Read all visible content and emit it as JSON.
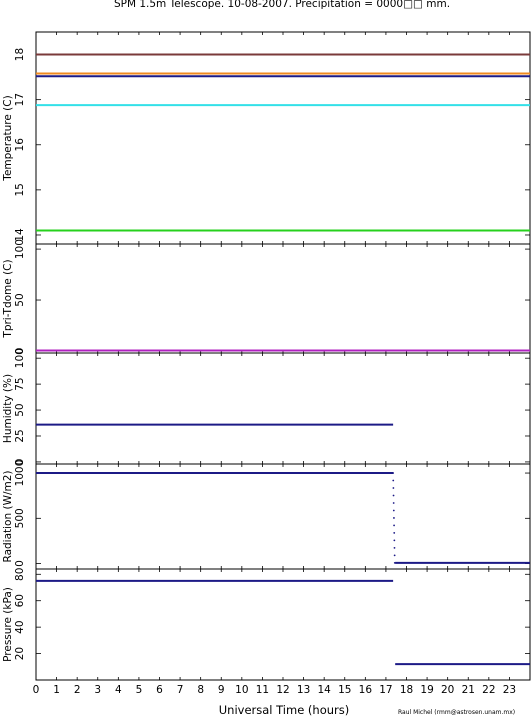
{
  "title": "SPM 1.5m Telescope. 10-08-2007. Precipitation = 0000□□ mm.",
  "credit": "Raul Michel (rmm@astrosen.unam.mx)",
  "colors": {
    "navy": "#1c1a86",
    "brown": "#7a3a3a",
    "orange": "#f08a1f",
    "cyan": "#33e0e8",
    "green": "#26d11c",
    "magenta": "#b020c0"
  },
  "chart_data": [
    {
      "type": "line",
      "title": "SPM 1.5m Telescope. 10-08-2007. Precipitation = 0000□□ mm.",
      "ylabel": "Temperature (C)",
      "xlim": [
        0,
        24
      ],
      "ylim": [
        13.8,
        18.5
      ],
      "yticks": [
        14,
        15,
        16,
        17,
        18
      ],
      "series": [
        {
          "color": "brown",
          "x": [
            0,
            24
          ],
          "y": [
            18.0,
            18.0
          ]
        },
        {
          "color": "orange",
          "x": [
            0,
            24
          ],
          "y": [
            17.58,
            17.58
          ]
        },
        {
          "color": "navy",
          "x": [
            0,
            24
          ],
          "y": [
            17.52,
            17.52
          ]
        },
        {
          "color": "cyan",
          "x": [
            0,
            24
          ],
          "y": [
            16.88,
            16.88
          ]
        },
        {
          "color": "green",
          "x": [
            0,
            24
          ],
          "y": [
            14.1,
            14.1
          ]
        }
      ]
    },
    {
      "type": "line",
      "ylabel": "Tpri-Tdome (C)",
      "xlim": [
        0,
        24
      ],
      "ylim": [
        -2,
        105
      ],
      "yticks": [
        0,
        50,
        100
      ],
      "series": [
        {
          "color": "magenta",
          "x": [
            0,
            24
          ],
          "y": [
            0.5,
            0.5
          ]
        }
      ]
    },
    {
      "type": "line",
      "ylabel": "Humidity (%)",
      "xlim": [
        0,
        24
      ],
      "ylim": [
        -2,
        105
      ],
      "yticks": [
        0,
        25,
        50,
        75,
        100
      ],
      "series": [
        {
          "color": "navy",
          "x": [
            0,
            17.35
          ],
          "y": [
            36,
            36
          ]
        }
      ]
    },
    {
      "type": "line",
      "ylabel": "Radiation (W/m2)",
      "xlim": [
        0,
        24
      ],
      "ylim": [
        -60,
        1100
      ],
      "yticks": [
        0,
        500,
        1000
      ],
      "series": [
        {
          "color": "navy",
          "x": [
            0,
            17.35
          ],
          "y": [
            1000,
            1000
          ]
        },
        {
          "color": "navy",
          "x": [
            17.45,
            24
          ],
          "y": [
            8,
            8
          ]
        }
      ],
      "dropoff": {
        "x": [
          17.35,
          17.43
        ],
        "y": [
          1000,
          8
        ]
      }
    },
    {
      "type": "line",
      "ylabel": "Pressure (kPa)",
      "xlim": [
        0,
        24
      ],
      "ylim": [
        0,
        84
      ],
      "yticks": [
        20,
        40,
        60,
        80
      ],
      "xticks": [
        0,
        1,
        2,
        3,
        4,
        5,
        6,
        7,
        8,
        9,
        10,
        11,
        12,
        13,
        14,
        15,
        16,
        17,
        18,
        19,
        20,
        21,
        22,
        23
      ],
      "xlabel": "Universal Time (hours)",
      "series": [
        {
          "color": "navy",
          "x": [
            0,
            17.35
          ],
          "y": [
            75,
            75
          ]
        },
        {
          "color": "navy",
          "x": [
            17.45,
            24
          ],
          "y": [
            12,
            12
          ]
        }
      ]
    }
  ]
}
